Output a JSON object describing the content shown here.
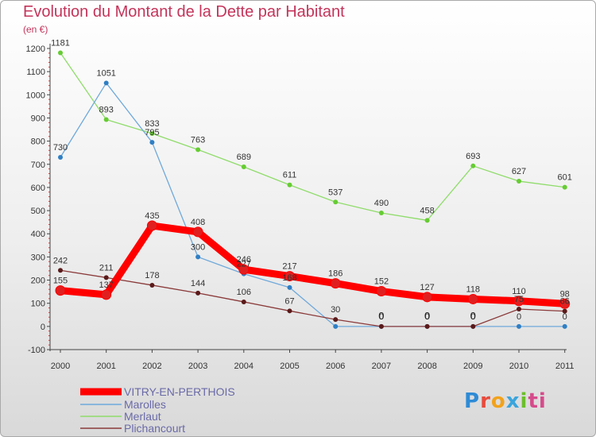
{
  "title": "Evolution du Montant de la Dette par Habitant",
  "unit_label": "(en €)",
  "logo": {
    "text": "Proxiti",
    "letters": [
      "P",
      "r",
      "o",
      "x",
      "i",
      "ti"
    ]
  },
  "chart_data": {
    "type": "line",
    "title": "Evolution du Montant de la Dette par Habitant",
    "ylabel": "(en €)",
    "xlabel": "",
    "categories": [
      "2000",
      "2001",
      "2002",
      "2003",
      "2004",
      "2005",
      "2006",
      "2007",
      "2008",
      "2009",
      "2010",
      "2011"
    ],
    "ylim": [
      -100,
      1200
    ],
    "yticks": [
      -100,
      0,
      100,
      200,
      300,
      400,
      500,
      600,
      700,
      800,
      900,
      1000,
      1100,
      1200
    ],
    "grid": false,
    "legend_position": "bottom-left",
    "series": [
      {
        "name": "VITRY-EN-PERTHOIS",
        "color": "#ff0000",
        "values": [
          155,
          137,
          435,
          408,
          246,
          217,
          186,
          152,
          127,
          118,
          110,
          98
        ],
        "labels": [
          "155",
          "137",
          "435",
          "408",
          "246",
          "217",
          "186",
          "152",
          "127",
          "118",
          "110",
          "98"
        ]
      },
      {
        "name": "Marolles",
        "color": "#6fa9db",
        "values": [
          730,
          1051,
          795,
          300,
          227,
          168,
          0,
          0,
          0,
          0,
          0,
          0
        ],
        "labels": [
          "730",
          "1051",
          "795",
          "300",
          "227",
          "168",
          "",
          "0",
          "0",
          "0",
          "0",
          "0"
        ]
      },
      {
        "name": "Merlaut",
        "color": "#8fdc6a",
        "values": [
          1181,
          893,
          833,
          763,
          689,
          611,
          537,
          490,
          458,
          693,
          627,
          601
        ],
        "labels": [
          "1181",
          "893",
          "833",
          "763",
          "689",
          "611",
          "537",
          "490",
          "458",
          "693",
          "627",
          "601"
        ]
      },
      {
        "name": "Plichancourt",
        "color": "#8b3a3a",
        "values": [
          242,
          211,
          178,
          144,
          106,
          67,
          30,
          0,
          0,
          0,
          75,
          66
        ],
        "labels": [
          "242",
          "211",
          "178",
          "144",
          "106",
          "67",
          "30",
          "0",
          "0",
          "0",
          "75",
          "66"
        ]
      }
    ]
  }
}
